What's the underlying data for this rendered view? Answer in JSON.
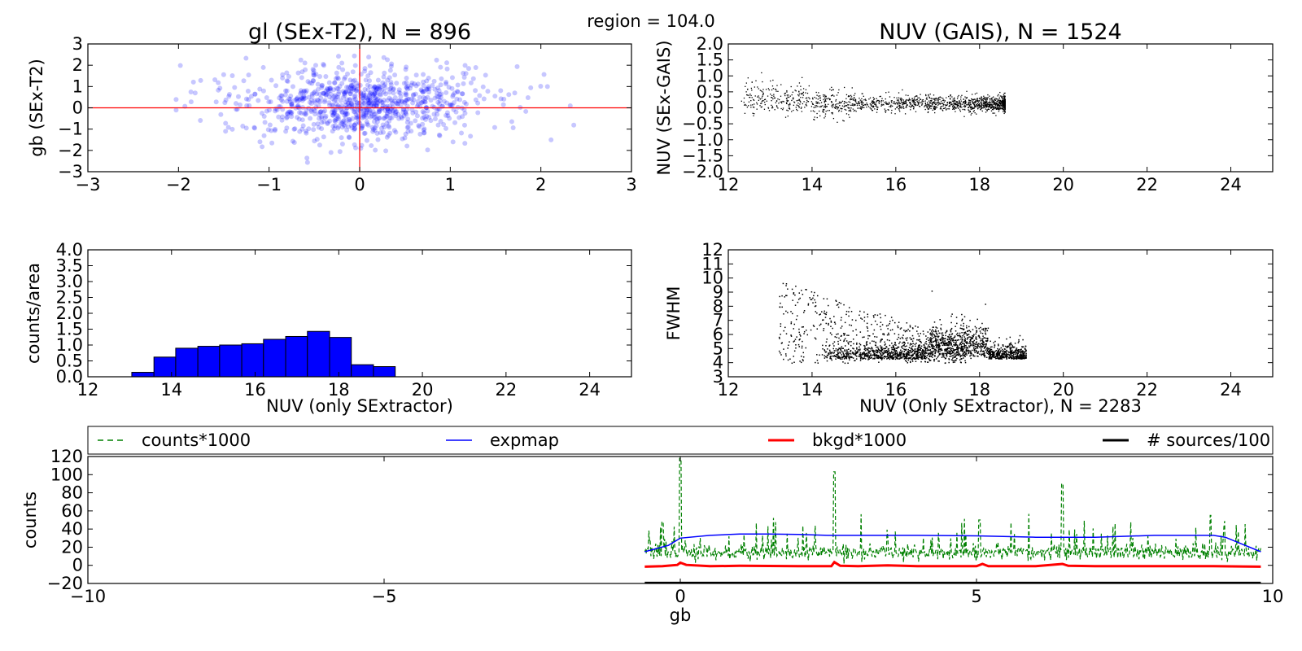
{
  "figure": {
    "suptitle": "region = 104.0"
  },
  "chart_data": [
    {
      "id": "gl_gb",
      "type": "scatter",
      "title": "gl (SEx-T2), N = 896",
      "xlabel": "",
      "ylabel": "gb (SEx-T2)",
      "xlim": [
        -3,
        3
      ],
      "ylim": [
        -3,
        3
      ],
      "xticks": [
        -3,
        -2,
        -1,
        0,
        1,
        2,
        3
      ],
      "yticks": [
        -3,
        -2,
        -1,
        0,
        1,
        2,
        3
      ],
      "xtick_labels": [
        "−3",
        "−2",
        "−1",
        "0",
        "1",
        "2",
        "3"
      ],
      "ytick_labels": [
        "−3",
        "−2",
        "−1",
        "0",
        "1",
        "2",
        "3"
      ],
      "color": "#0000ff",
      "reference_lines": {
        "x": 0,
        "y": 0,
        "color": "#ff0000"
      },
      "n_points": 896,
      "distribution": {
        "x_mean": 0.05,
        "x_sd": 0.6,
        "y_mean": 0.2,
        "y_sd": 0.85
      }
    },
    {
      "id": "nuv_gais",
      "type": "scatter",
      "title": "NUV (GAIS), N = 1524",
      "xlabel": "",
      "ylabel": "NUV (SEx-GAIS)",
      "xlim": [
        12,
        25
      ],
      "ylim": [
        -2,
        2
      ],
      "xticks": [
        12,
        14,
        16,
        18,
        20,
        22,
        24
      ],
      "yticks": [
        -2,
        -1.5,
        -1,
        -0.5,
        0,
        0.5,
        1,
        1.5,
        2
      ],
      "xtick_labels": [
        "12",
        "14",
        "16",
        "18",
        "20",
        "22",
        "24"
      ],
      "ytick_labels": [
        "−2.0",
        "−1.5",
        "−1.0",
        "−0.5",
        "0.0",
        "0.5",
        "1.0",
        "1.5",
        "2.0"
      ],
      "color": "#000000",
      "n_points": 1524,
      "distribution": {
        "x_range": [
          12.3,
          18.6
        ],
        "y_mean": 0.15,
        "y_sd": 0.12
      }
    },
    {
      "id": "nuv_hist",
      "type": "bar",
      "title": "",
      "xlabel": "NUV (only SExtractor)",
      "ylabel": "counts/area",
      "xlim": [
        12,
        25
      ],
      "ylim": [
        0,
        4
      ],
      "xticks": [
        12,
        14,
        16,
        18,
        20,
        22,
        24
      ],
      "yticks": [
        0,
        0.5,
        1,
        1.5,
        2,
        2.5,
        3,
        3.5,
        4
      ],
      "xtick_labels": [
        "12",
        "14",
        "16",
        "18",
        "20",
        "22",
        "24"
      ],
      "ytick_labels": [
        "0.0",
        "0.5",
        "1.0",
        "1.5",
        "2.0",
        "2.5",
        "3.0",
        "3.5",
        "4.0"
      ],
      "color": "#0000ff",
      "bin_edges": [
        13.05,
        13.58,
        14.1,
        14.63,
        15.15,
        15.68,
        16.2,
        16.73,
        17.25,
        17.78,
        18.3,
        18.83,
        19.35
      ],
      "values": [
        0.14,
        0.62,
        0.9,
        0.96,
        1.0,
        1.04,
        1.18,
        1.27,
        1.43,
        1.24,
        0.38,
        0.32
      ]
    },
    {
      "id": "fwhm",
      "type": "scatter",
      "title": "",
      "xlabel": "NUV (Only SExtractor),  N = 2283",
      "ylabel": "FWHM",
      "xlim": [
        12,
        25
      ],
      "ylim": [
        3,
        12
      ],
      "xticks": [
        12,
        14,
        16,
        18,
        20,
        22,
        24
      ],
      "yticks": [
        3,
        4,
        5,
        6,
        7,
        8,
        9,
        10,
        11,
        12
      ],
      "xtick_labels": [
        "12",
        "14",
        "16",
        "18",
        "20",
        "22",
        "24"
      ],
      "ytick_labels": [
        "3",
        "4",
        "5",
        "6",
        "7",
        "8",
        "9",
        "10",
        "11",
        "12"
      ],
      "color": "#000000",
      "n_points": 2283,
      "distribution": {
        "x_range": [
          13.2,
          19.7
        ],
        "y_range": [
          3.4,
          9.9
        ]
      }
    },
    {
      "id": "counts_profile",
      "type": "line",
      "title": "",
      "xlabel": "gb",
      "ylabel": "counts",
      "xlim": [
        -10,
        10
      ],
      "ylim": [
        -20,
        120
      ],
      "xticks": [
        -10,
        -5,
        0,
        5,
        10
      ],
      "yticks": [
        -20,
        0,
        20,
        40,
        60,
        80,
        100,
        120
      ],
      "xtick_labels": [
        "−10",
        "−5",
        "0",
        "5",
        "10"
      ],
      "ytick_labels": [
        "−20",
        "0",
        "20",
        "40",
        "60",
        "80",
        "100",
        "120"
      ],
      "legend_position": "top, outside (horizontal row)",
      "series": [
        {
          "name": "counts*1000",
          "color": "#008000",
          "style": "dashed",
          "baseline": 14,
          "peaks": [
            [
              0.0,
              118
            ],
            [
              2.6,
              103
            ],
            [
              5.05,
              50
            ],
            [
              6.45,
              90
            ],
            [
              8.95,
              55
            ],
            [
              -0.3,
              48
            ]
          ]
        },
        {
          "name": "expmap",
          "color": "#0000ff",
          "style": "solid",
          "x": [
            -0.6,
            -0.2,
            0.0,
            0.5,
            1.0,
            1.5,
            2.0,
            2.5,
            3.0,
            4.0,
            5.0,
            6.0,
            7.0,
            8.0,
            9.0,
            9.2,
            9.8
          ],
          "values": [
            15,
            22,
            30,
            33,
            34.5,
            34.5,
            34,
            33,
            33,
            33,
            32.5,
            31,
            31,
            33,
            33,
            31,
            15
          ]
        },
        {
          "name": "bkgd*1000",
          "color": "#ff0000",
          "style": "solid",
          "x": [
            -0.6,
            -0.3,
            -0.05,
            0.0,
            0.1,
            0.5,
            1.0,
            2.0,
            2.55,
            2.6,
            2.7,
            3.0,
            3.5,
            4.0,
            5.0,
            5.1,
            5.2,
            6.0,
            6.45,
            6.55,
            7.0,
            8.0,
            9.0,
            9.8
          ],
          "values": [
            -1.5,
            -1,
            0.5,
            3,
            0.5,
            -1,
            -0.5,
            -1,
            -1,
            3.5,
            -0.5,
            -1,
            0,
            -1,
            -1,
            1.5,
            -1,
            -1,
            1.5,
            -0.5,
            -1,
            -1,
            -1,
            -1.5
          ]
        },
        {
          "name": "# sources/100",
          "color": "#000000",
          "style": "solid",
          "x": [
            -0.6,
            9.8
          ],
          "values": [
            -19.5,
            -19.5
          ]
        }
      ]
    }
  ]
}
